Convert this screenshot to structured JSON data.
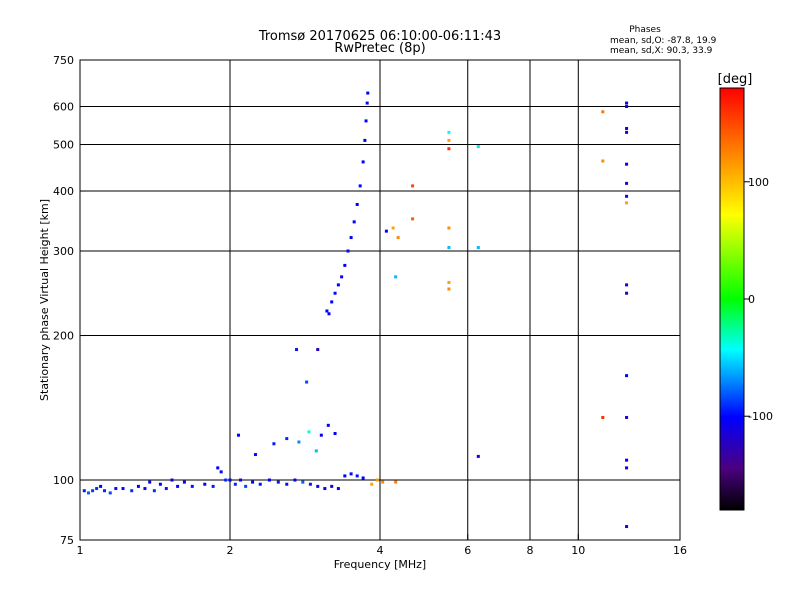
{
  "chart_data": {
    "type": "scatter",
    "title": "Tromsø 20170625 06:10:00-06:11:43",
    "subtitle": "RwPretec (8p)",
    "xlabel": "Frequency [MHz]",
    "ylabel": "Stationary phase Virtual Height [km]",
    "x_scale": "log",
    "y_scale": "log",
    "xlim": [
      1,
      16
    ],
    "ylim": [
      75,
      750
    ],
    "x_ticks": [
      1,
      2,
      4,
      6,
      8,
      10,
      16
    ],
    "y_ticks": [
      75,
      100,
      200,
      300,
      400,
      500,
      600,
      750
    ],
    "x_gridlines": [
      2,
      4,
      6,
      8,
      10
    ],
    "y_gridlines": [
      100,
      200,
      300,
      400,
      500,
      600
    ],
    "legend_header": "Phases",
    "legend_lines": [
      "mean, sd,O: -87.8, 19.9",
      "mean, sd,X:  90.3, 33.9"
    ],
    "colorbar": {
      "label": "[deg]",
      "range": [
        -180,
        180
      ],
      "ticks": [
        100,
        0,
        -100
      ]
    },
    "series": [
      {
        "points": [
          [
            1.02,
            95,
            -95
          ],
          [
            1.04,
            94,
            -80
          ],
          [
            1.06,
            95,
            -88
          ],
          [
            1.08,
            96,
            -90
          ],
          [
            1.1,
            97,
            -100
          ],
          [
            1.12,
            95,
            -92
          ],
          [
            1.15,
            94,
            -85
          ],
          [
            1.18,
            96,
            -97
          ],
          [
            1.22,
            96,
            -99
          ],
          [
            1.27,
            95,
            -90
          ],
          [
            1.31,
            97,
            -102
          ],
          [
            1.35,
            96,
            -98
          ],
          [
            1.38,
            99,
            -105
          ],
          [
            1.41,
            95,
            -90
          ],
          [
            1.45,
            98,
            -100
          ],
          [
            1.49,
            96,
            -95
          ],
          [
            1.53,
            100,
            -108
          ],
          [
            1.57,
            97,
            -100
          ],
          [
            1.62,
            99,
            -104
          ],
          [
            1.68,
            97,
            -96
          ],
          [
            1.78,
            98,
            -100
          ],
          [
            1.85,
            97,
            -95
          ],
          [
            1.89,
            106,
            -100
          ],
          [
            1.92,
            104,
            -98
          ],
          [
            1.96,
            100,
            -90
          ],
          [
            2.0,
            100,
            -100
          ],
          [
            2.05,
            98,
            -92
          ],
          [
            2.1,
            100,
            -98
          ],
          [
            2.15,
            97,
            -85
          ],
          [
            2.22,
            99,
            -100
          ],
          [
            2.3,
            98,
            -96
          ],
          [
            2.4,
            100,
            -100
          ],
          [
            2.5,
            99,
            -95
          ],
          [
            2.6,
            98,
            -97
          ],
          [
            2.7,
            100,
            -100
          ],
          [
            2.8,
            99,
            -80
          ],
          [
            2.9,
            98,
            -95
          ],
          [
            3.0,
            97,
            -104
          ],
          [
            3.1,
            96,
            -108
          ],
          [
            3.2,
            97,
            -110
          ],
          [
            3.3,
            96,
            -102
          ],
          [
            3.4,
            102,
            -100
          ],
          [
            3.5,
            103,
            -98
          ],
          [
            3.6,
            102,
            -96
          ],
          [
            3.7,
            101,
            -100
          ],
          [
            3.85,
            98,
            110
          ],
          [
            3.95,
            100,
            115
          ],
          [
            4.05,
            99,
            120
          ],
          [
            4.3,
            99,
            125
          ],
          [
            2.08,
            124,
            -100
          ],
          [
            2.25,
            113,
            -98
          ],
          [
            2.45,
            119,
            -95
          ],
          [
            2.6,
            122,
            -92
          ],
          [
            2.75,
            120,
            -70
          ],
          [
            2.88,
            126,
            -40
          ],
          [
            2.98,
            115,
            -60
          ],
          [
            3.05,
            124,
            -105
          ],
          [
            3.15,
            130,
            -102
          ],
          [
            3.25,
            125,
            -100
          ],
          [
            2.72,
            187,
            -95
          ],
          [
            2.85,
            160,
            -85
          ],
          [
            3.0,
            187,
            -120
          ],
          [
            3.13,
            225,
            -100
          ],
          [
            3.16,
            222,
            -104
          ],
          [
            3.2,
            235,
            -100
          ],
          [
            3.25,
            245,
            -98
          ],
          [
            3.3,
            255,
            -100
          ],
          [
            3.35,
            265,
            -102
          ],
          [
            3.4,
            280,
            -100
          ],
          [
            3.45,
            300,
            -98
          ],
          [
            3.5,
            320,
            -100
          ],
          [
            3.55,
            345,
            -102
          ],
          [
            3.6,
            375,
            -100
          ],
          [
            3.65,
            410,
            -98
          ],
          [
            3.7,
            460,
            -100
          ],
          [
            3.73,
            510,
            -102
          ],
          [
            3.75,
            560,
            -100
          ],
          [
            3.77,
            610,
            -98
          ],
          [
            3.78,
            640,
            -100
          ],
          [
            4.12,
            330,
            -100
          ],
          [
            4.25,
            335,
            110
          ],
          [
            4.3,
            265,
            -60
          ],
          [
            4.35,
            320,
            120
          ],
          [
            4.65,
            350,
            140
          ],
          [
            4.65,
            410,
            150
          ],
          [
            5.5,
            530,
            -40
          ],
          [
            5.5,
            510,
            110
          ],
          [
            5.5,
            490,
            160
          ],
          [
            5.5,
            335,
            120
          ],
          [
            5.5,
            305,
            -60
          ],
          [
            5.5,
            258,
            110
          ],
          [
            5.5,
            250,
            120
          ],
          [
            6.3,
            495,
            -50
          ],
          [
            6.3,
            305,
            -60
          ],
          [
            6.3,
            112,
            -110
          ],
          [
            11.2,
            585,
            130
          ],
          [
            11.2,
            462,
            120
          ],
          [
            11.2,
            135,
            160
          ],
          [
            12.5,
            610,
            -110
          ],
          [
            12.5,
            600,
            -105
          ],
          [
            12.5,
            540,
            -115
          ],
          [
            12.5,
            530,
            -120
          ],
          [
            12.5,
            455,
            -105
          ],
          [
            12.5,
            415,
            -125
          ],
          [
            12.5,
            390,
            -120
          ],
          [
            12.5,
            378,
            110
          ],
          [
            12.5,
            255,
            -110
          ],
          [
            12.5,
            245,
            -130
          ],
          [
            12.5,
            165,
            -105
          ],
          [
            12.5,
            135,
            -120
          ],
          [
            12.5,
            110,
            -105
          ],
          [
            12.5,
            106,
            -110
          ],
          [
            12.5,
            80,
            -115
          ]
        ]
      }
    ]
  }
}
